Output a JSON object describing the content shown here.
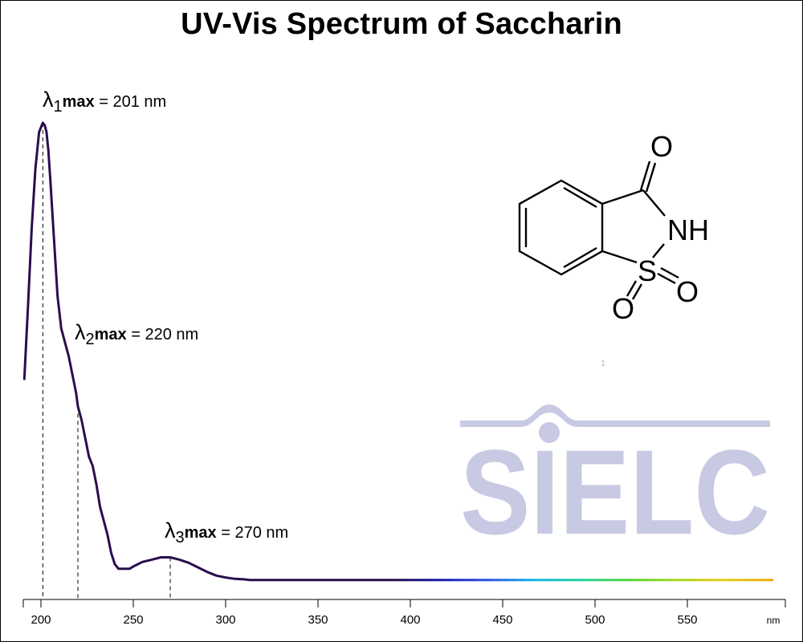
{
  "chart_data": {
    "type": "line",
    "title": "UV-Vis Spectrum of Saccharin",
    "xlabel": "nm",
    "ylabel": "",
    "xlim": [
      190,
      600
    ],
    "ylim": [
      0,
      100
    ],
    "y_axis_visible": false,
    "grid": false,
    "xticks": [
      200,
      250,
      300,
      350,
      400,
      450,
      500,
      550
    ],
    "series": [
      {
        "x": [
          191,
          193,
          195,
          197,
          199,
          201,
          202,
          203,
          204,
          205,
          207,
          209,
          211,
          213,
          215,
          217,
          219,
          220,
          222,
          224,
          226,
          228,
          230,
          232,
          234,
          236,
          238,
          240,
          242,
          245,
          248,
          250,
          255,
          260,
          265,
          270,
          275,
          280,
          285,
          290,
          295,
          300,
          305,
          310,
          313,
          320,
          350,
          400,
          450,
          500,
          550,
          596
        ],
        "y": [
          44,
          60,
          77,
          90,
          98,
          100,
          99.5,
          98,
          94,
          88,
          75,
          62,
          55,
          52,
          49,
          45,
          41,
          38,
          35,
          31,
          27,
          25,
          21,
          16,
          13,
          10,
          6,
          3.5,
          2.5,
          2.5,
          2.5,
          3,
          4,
          4.5,
          5,
          5,
          4.5,
          3.8,
          2.8,
          1.8,
          1,
          0.6,
          0.3,
          0.2,
          0.05,
          0.05,
          0.05,
          0.05,
          0.05,
          0.05,
          0.05,
          0.05
        ]
      }
    ],
    "annotations": [
      {
        "sub": "1",
        "x": 201,
        "value": "= 201 nm"
      },
      {
        "sub": "2",
        "x": 220,
        "value": "= 220 nm"
      },
      {
        "sub": "3",
        "x": 270,
        "value": "= 270 nm"
      }
    ],
    "annotation_symbol": "λ",
    "annotation_keyword": "max"
  },
  "structure": {
    "atoms": {
      "o_top": "O",
      "nh": "NH",
      "s": "S",
      "o_left": "O",
      "o_right": "O"
    },
    "tag": "1"
  },
  "watermark": {
    "text": "SIELC",
    "color": "#c8c9e3"
  },
  "colors": {
    "uv_line": "#2a0d4d",
    "spectrum": [
      "#2a0d4d",
      "#1a1aa8",
      "#2f52e0",
      "#16b4e6",
      "#22d29a",
      "#55d23a",
      "#a6d81a",
      "#e6cb17",
      "#f3a60f"
    ]
  }
}
